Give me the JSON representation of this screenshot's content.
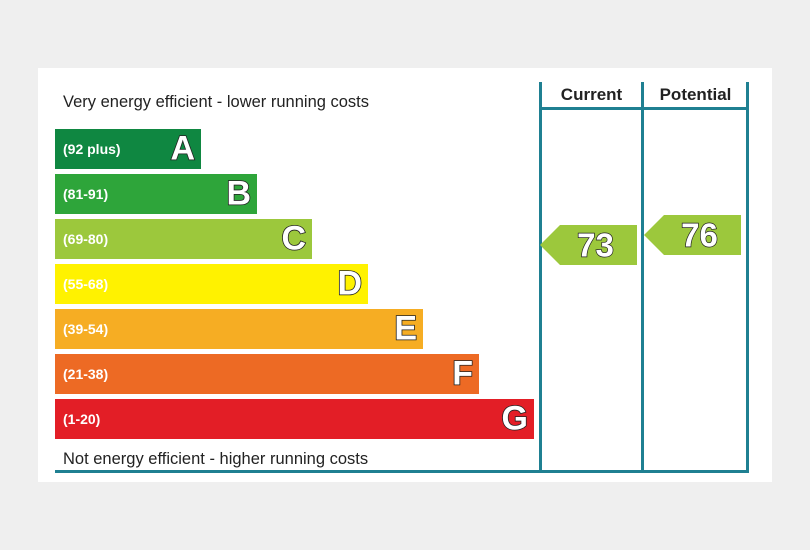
{
  "chart_data": {
    "type": "bar",
    "caption_top": "Very energy efficient - lower running costs",
    "caption_bottom": "Not energy efficient - higher running costs",
    "bands": [
      {
        "letter": "A",
        "range": "(92 plus)",
        "color": "#0f8741"
      },
      {
        "letter": "B",
        "range": "(81-91)",
        "color": "#2ea53a"
      },
      {
        "letter": "C",
        "range": "(69-80)",
        "color": "#9cc83c"
      },
      {
        "letter": "D",
        "range": "(55-68)",
        "color": "#fff200"
      },
      {
        "letter": "E",
        "range": "(39-54)",
        "color": "#f6ad23"
      },
      {
        "letter": "F",
        "range": "(21-38)",
        "color": "#ed6a24"
      },
      {
        "letter": "G",
        "range": "(1-20)",
        "color": "#e31e26"
      }
    ],
    "columns": {
      "current": "Current",
      "potential": "Potential"
    },
    "ratings": {
      "current": {
        "value": "73",
        "band": "C",
        "color": "#9cc83c"
      },
      "potential": {
        "value": "76",
        "band": "C",
        "color": "#9cc83c"
      }
    },
    "line_color": "#1f8092"
  }
}
